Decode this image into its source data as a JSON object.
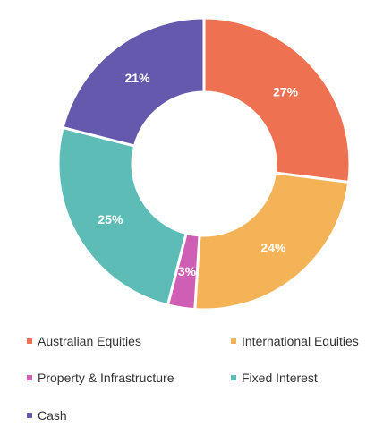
{
  "chart_data": {
    "type": "pie",
    "donut": true,
    "title": "",
    "categories": [
      "Australian Equities",
      "International Equities",
      "Property & Infrastructure",
      "Fixed Interest",
      "Cash"
    ],
    "values": [
      27,
      24,
      3,
      25,
      21
    ],
    "value_labels": [
      "27%",
      "24%",
      "3%",
      "25%",
      "21%"
    ],
    "colors": [
      "#ee7152",
      "#f5b357",
      "#ce5fb5",
      "#5dbdb6",
      "#6459ac"
    ],
    "legend": {
      "position": "bottom",
      "items": [
        "Australian Equities",
        "International Equities",
        "Property & Infrastructure",
        "Fixed Interest",
        "Cash"
      ]
    }
  }
}
